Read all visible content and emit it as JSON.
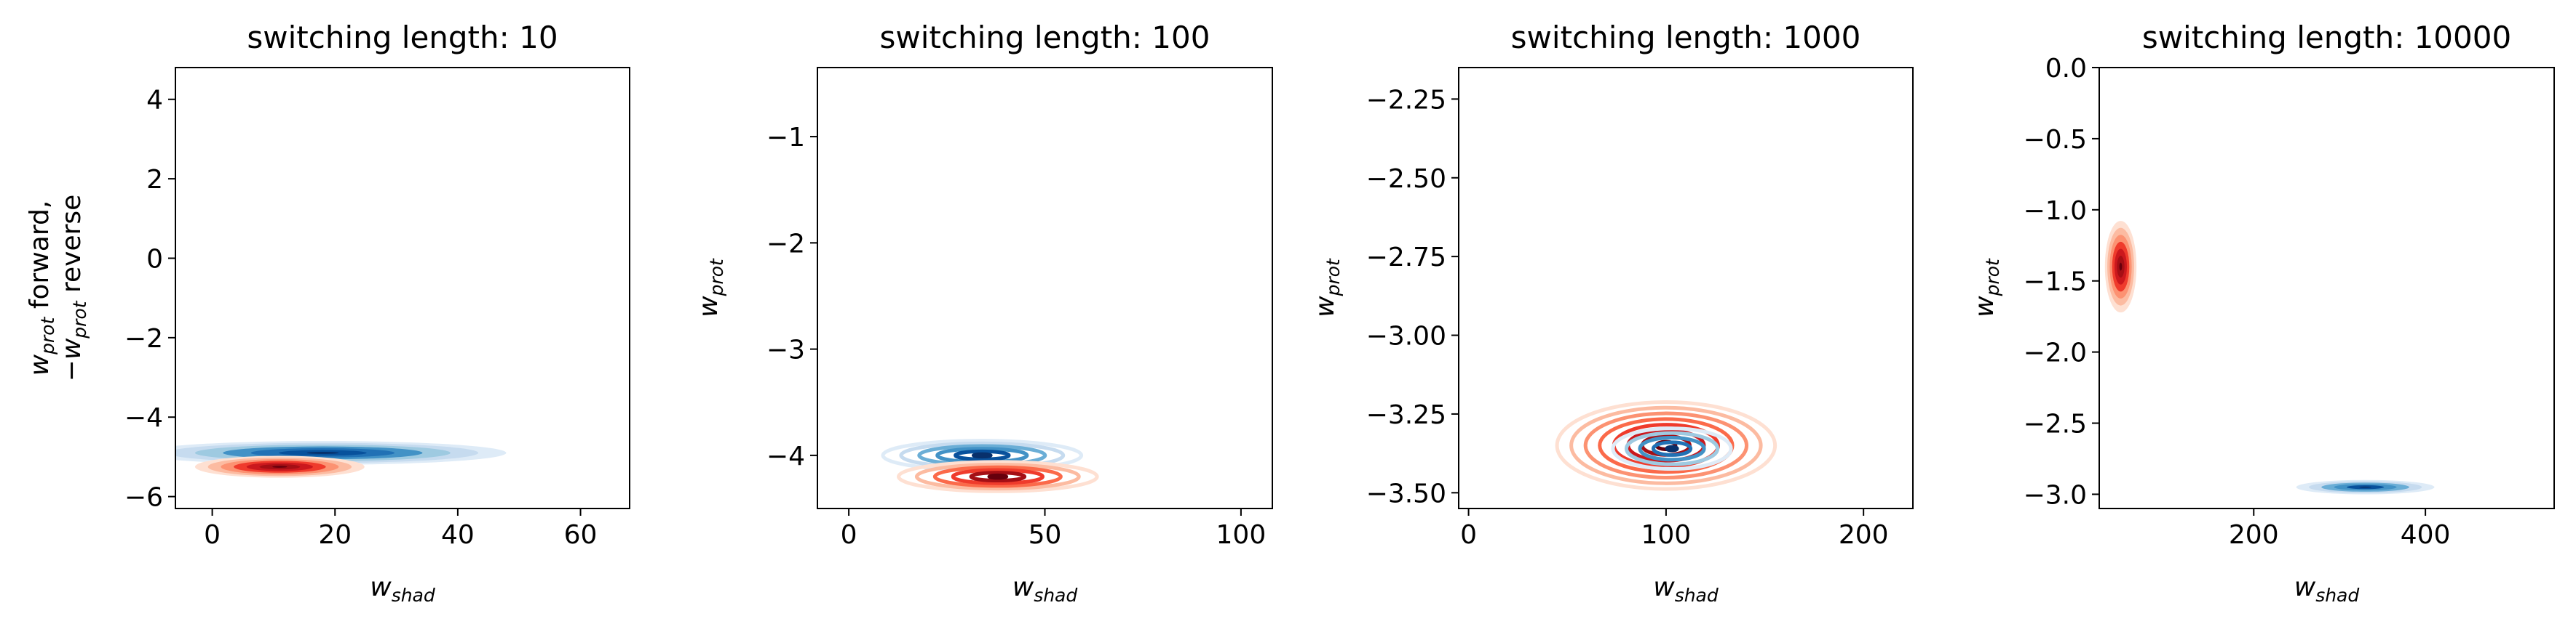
{
  "chart_data": [
    {
      "type": "contour",
      "title": "switching length: 10",
      "xlabel": {
        "base": "w",
        "sub": "shad"
      },
      "ylabel": {
        "line1_base": "w",
        "line1_sub": "prot",
        "line1_rest": " forward,",
        "line2_base": "−w",
        "line2_sub": "prot",
        "line2_rest": " reverse"
      },
      "xlim": [
        -6,
        68
      ],
      "ylim": [
        -6.3,
        4.8
      ],
      "xticks": [
        0,
        20,
        40,
        60
      ],
      "xtick_labels": [
        "0",
        "20",
        "40",
        "60"
      ],
      "yticks": [
        -6,
        -4,
        -2,
        0,
        2,
        4
      ],
      "ytick_labels": [
        "−6",
        "−4",
        "−2",
        "0",
        "2",
        "4"
      ],
      "series": [
        {
          "colormap": "Blues",
          "center": [
            18,
            -4.9
          ],
          "spread": [
            13,
            0.13
          ],
          "levels": 7,
          "style": "filled"
        },
        {
          "colormap": "Reds",
          "center": [
            11,
            -5.25
          ],
          "spread": [
            6,
            0.12
          ],
          "levels": 7,
          "style": "filled"
        }
      ]
    },
    {
      "type": "contour",
      "title": "switching length: 100",
      "xlabel": {
        "base": "w",
        "sub": "shad"
      },
      "ylabel": {
        "base": "w",
        "sub": "prot"
      },
      "xlim": [
        -8,
        108
      ],
      "ylim": [
        -4.5,
        -0.35
      ],
      "xticks": [
        0,
        50,
        100
      ],
      "xtick_labels": [
        "0",
        "50",
        "100"
      ],
      "yticks": [
        -4,
        -3,
        -2,
        -1
      ],
      "ytick_labels": [
        "−4",
        "−3",
        "−2",
        "−1"
      ],
      "series": [
        {
          "colormap": "Blues",
          "center": [
            34,
            -4.0
          ],
          "spread": [
            11,
            0.06
          ],
          "levels": 6,
          "style": "lines"
        },
        {
          "colormap": "Reds",
          "center": [
            38,
            -4.2
          ],
          "spread": [
            11,
            0.06
          ],
          "levels": 6,
          "style": "lines"
        }
      ]
    },
    {
      "type": "contour",
      "title": "switching length: 1000",
      "xlabel": {
        "base": "w",
        "sub": "shad"
      },
      "ylabel": {
        "base": "w",
        "sub": "prot"
      },
      "xlim": [
        -5,
        225
      ],
      "ylim": [
        -3.55,
        -2.15
      ],
      "xticks": [
        0,
        100,
        200
      ],
      "xtick_labels": [
        "0",
        "100",
        "200"
      ],
      "yticks": [
        -3.5,
        -3.25,
        -3.0,
        -2.75,
        -2.5,
        -2.25
      ],
      "ytick_labels": [
        "−3.50",
        "−3.25",
        "−3.00",
        "−2.75",
        "−2.50",
        "−2.25"
      ],
      "series": [
        {
          "colormap": "Reds",
          "center": [
            100,
            -3.35
          ],
          "spread": [
            24,
            0.06
          ],
          "levels": 8,
          "style": "lines"
        },
        {
          "colormap": "Blues",
          "center": [
            103,
            -3.36
          ],
          "spread": [
            13,
            0.028
          ],
          "levels": 5,
          "style": "lines"
        }
      ]
    },
    {
      "type": "contour",
      "title": "switching length: 10000",
      "xlabel": {
        "base": "w",
        "sub": "shad"
      },
      "ylabel": {
        "base": "w",
        "sub": "prot"
      },
      "xlim": [
        20,
        550
      ],
      "ylim": [
        -3.1,
        0.0
      ],
      "xticks": [
        200,
        400
      ],
      "xtick_labels": [
        "200",
        "400"
      ],
      "yticks": [
        -3.0,
        -2.5,
        -2.0,
        -1.5,
        -1.0,
        -0.5,
        0.0
      ],
      "ytick_labels": [
        "−3.0",
        "−2.5",
        "−2.0",
        "−1.5",
        "−1.0",
        "−0.5",
        "0.0"
      ],
      "series": [
        {
          "colormap": "Reds",
          "center": [
            45,
            -1.4
          ],
          "spread": [
            8,
            0.14
          ],
          "levels": 7,
          "style": "filled"
        },
        {
          "colormap": "Blues",
          "center": [
            330,
            -2.95
          ],
          "spread": [
            35,
            0.022
          ],
          "levels": 6,
          "style": "filled"
        }
      ]
    }
  ],
  "colors": {
    "Blues": [
      "#deebf7",
      "#c6dbef",
      "#9ecae1",
      "#6baed6",
      "#4292c6",
      "#2171b5",
      "#08519c",
      "#08306b"
    ],
    "Reds": [
      "#fee0d2",
      "#fcbba1",
      "#fc9272",
      "#fb6a4a",
      "#ef3b2c",
      "#cb181d",
      "#a50f15",
      "#67000d"
    ]
  }
}
